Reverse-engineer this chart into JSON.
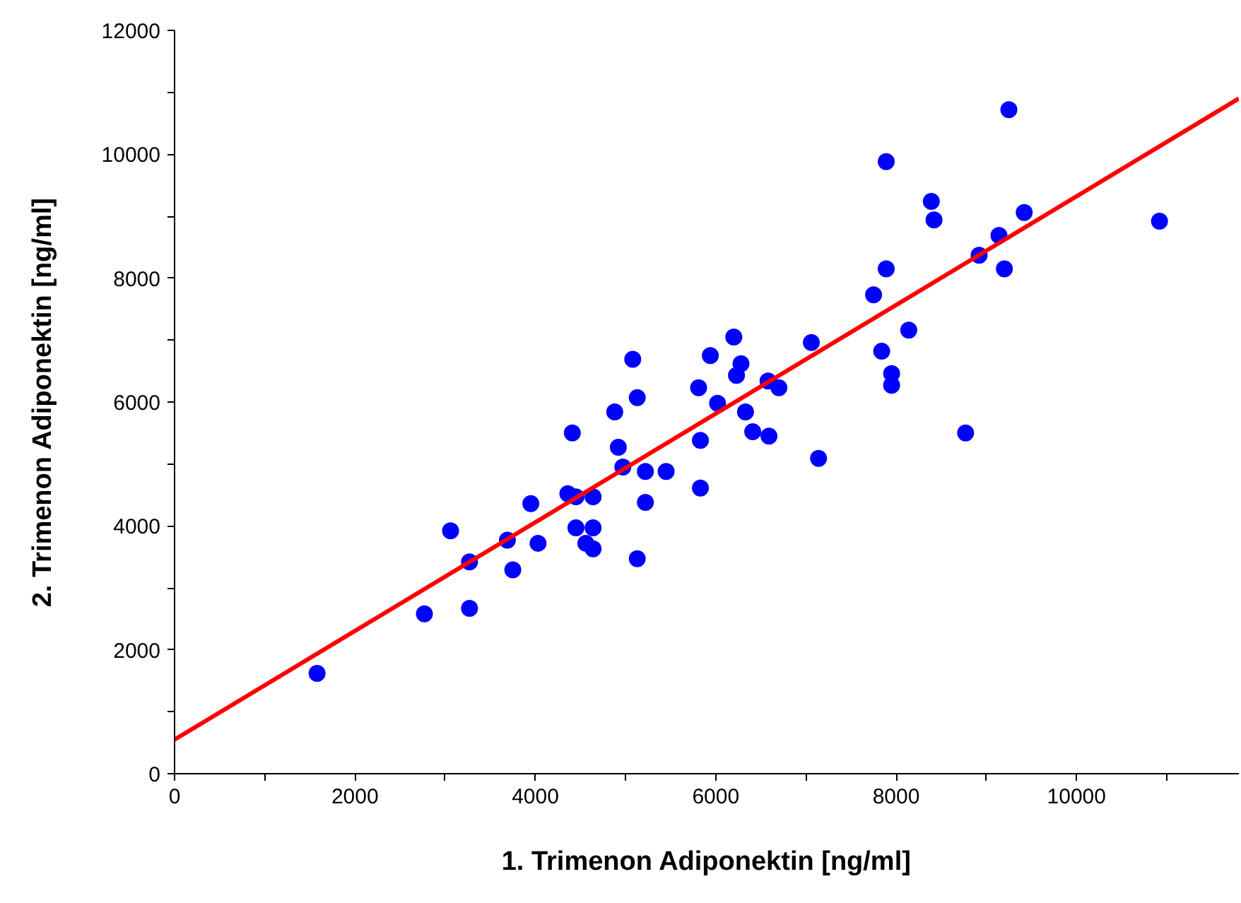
{
  "chart_data": {
    "type": "scatter",
    "xlabel": "1. Trimenon Adiponektin [ng/ml]",
    "ylabel": "2. Trimenon Adiponektin [ng/ml]",
    "xlim": [
      0,
      11800
    ],
    "ylim": [
      0,
      12000
    ],
    "xticks": [
      0,
      {
        "value": 1000,
        "label": null
      },
      2000,
      {
        "value": 3000,
        "label": null
      },
      4000,
      {
        "value": 5000,
        "label": null
      },
      6000,
      {
        "value": 7000,
        "label": null
      },
      8000,
      {
        "value": 9000,
        "label": null
      },
      10000,
      {
        "value": 11000,
        "label": null
      }
    ],
    "yticks": [
      0,
      {
        "value": 1000,
        "label": null
      },
      2000,
      {
        "value": 3000,
        "label": null
      },
      4000,
      {
        "value": 5000,
        "label": null
      },
      6000,
      {
        "value": 7000,
        "label": null
      },
      8000,
      {
        "value": 9000,
        "label": null
      },
      10000,
      {
        "value": 11000,
        "label": null
      },
      12000
    ],
    "grid": false,
    "series": [
      {
        "color": "#0000ff",
        "marker": "circle",
        "x": [
          1580,
          2770,
          3270,
          3060,
          3270,
          3690,
          3750,
          3950,
          4030,
          4360,
          4410,
          4450,
          4450,
          4560,
          4640,
          4640,
          4640,
          4880,
          4920,
          4970,
          5080,
          5130,
          5130,
          5220,
          5220,
          5450,
          5830,
          5830,
          5810,
          6020,
          5940,
          6200,
          6280,
          6230,
          6330,
          6410,
          6590,
          6580,
          6700,
          7140,
          7060,
          9250,
          7890,
          8390,
          8420,
          9420,
          10920,
          9140,
          8920,
          9200,
          7890,
          7750,
          8140,
          7840,
          7950,
          7950,
          8770
        ],
        "values": [
          1620,
          2580,
          2670,
          3920,
          3420,
          3770,
          3290,
          4360,
          3720,
          4520,
          5500,
          4470,
          3970,
          3720,
          3630,
          4470,
          3970,
          5840,
          5270,
          4950,
          6690,
          6070,
          3470,
          4880,
          4380,
          4880,
          4610,
          5380,
          6230,
          5980,
          6750,
          7050,
          6620,
          6430,
          5840,
          5520,
          5450,
          6340,
          6230,
          5090,
          6960,
          10720,
          9880,
          9240,
          8940,
          9060,
          8920,
          8690,
          8370,
          8150,
          8150,
          7730,
          7160,
          6820,
          6460,
          6270,
          5500
        ]
      },
      {
        "type": "line",
        "color": "#ff0000",
        "line_style": "solid",
        "x": [
          0,
          11800
        ],
        "values": [
          550,
          10900
        ]
      }
    ]
  }
}
